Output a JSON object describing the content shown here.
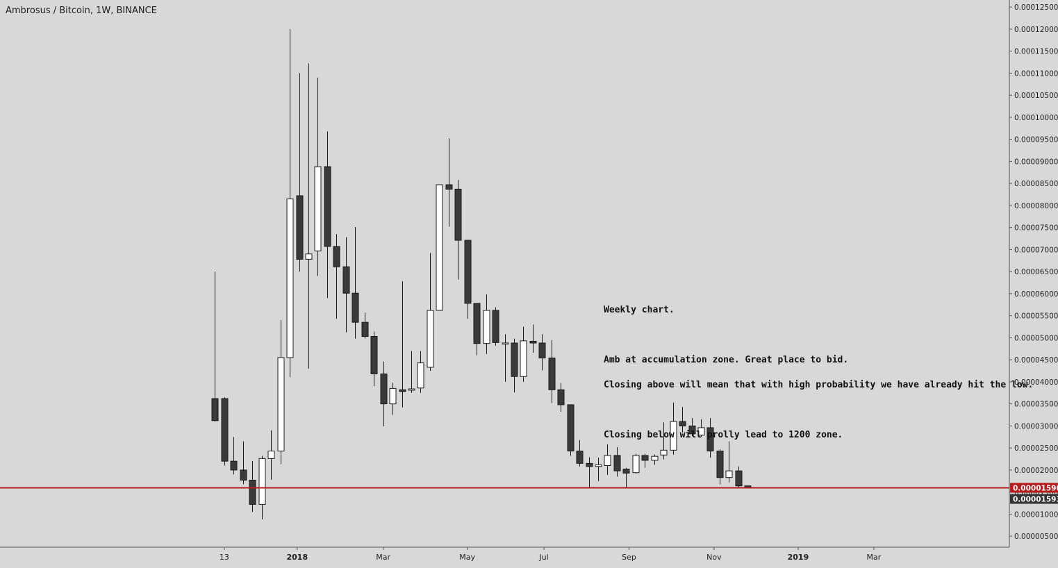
{
  "header": {
    "symbol_title": "Ambrosus / Bitcoin, 1W, BINANCE"
  },
  "annotation": {
    "lines": [
      "Weekly chart.",
      "",
      "Amb at accumulation zone. Great place to bid.",
      "Closing above will mean that with high probability we have already hit the low.",
      "",
      "Closing below will prolly lead to 1200 zone."
    ]
  },
  "price_labels": {
    "horizontal_line_price": "0.00001596",
    "last_price": "0.00001593",
    "horizontal_line_color": "#b71c1c",
    "last_price_color": "#333333"
  },
  "colors": {
    "background": "#d8d8d8",
    "up_candle_body": "#ffffff",
    "down_candle_body": "#3a3a3a",
    "wick": "#1a1a1a",
    "axis_text": "#1e1e1e"
  },
  "chart_data": {
    "type": "candlestick",
    "timeframe": "1W",
    "y_axis": {
      "side": "right",
      "ylim": [
        2.5e-06,
        0.0001266
      ],
      "tick_values": [
        5e-06,
        1e-05,
        1.5e-05,
        2e-05,
        2.5e-05,
        3e-05,
        3.5e-05,
        4e-05,
        4.5e-05,
        5e-05,
        5.5e-05,
        6e-05,
        6.5e-05,
        7e-05,
        7.5e-05,
        8e-05,
        8.5e-05,
        9e-05,
        9.5e-05,
        0.0001,
        0.000105,
        0.00011,
        0.000115,
        0.00012,
        0.000125
      ],
      "tick_labels": [
        "0.00000500",
        "0.00001000",
        "0.00001500",
        "0.00002000",
        "0.00002500",
        "0.00003000",
        "0.00003500",
        "0.00004000",
        "0.00004500",
        "0.00005000",
        "0.00005500",
        "0.00006000",
        "0.00006500",
        "0.00007000",
        "0.00007500",
        "0.00008000",
        "0.00008500",
        "0.00009000",
        "0.00009500",
        "0.00010000",
        "0.00010500",
        "0.00011000",
        "0.00011500",
        "0.00012000",
        "0.00012500"
      ]
    },
    "x_axis": {
      "first_candle_week": "2017-10-29",
      "xlim_weeks": [
        -23,
        85
      ],
      "ticks": [
        {
          "label": "13",
          "week": 1,
          "bold": false
        },
        {
          "label": "2018",
          "week": 8.8,
          "bold": true
        },
        {
          "label": "Mar",
          "week": 18,
          "bold": false
        },
        {
          "label": "May",
          "week": 27,
          "bold": false
        },
        {
          "label": "Jul",
          "week": 35.2,
          "bold": false
        },
        {
          "label": "Sep",
          "week": 44.3,
          "bold": false
        },
        {
          "label": "Nov",
          "week": 53.4,
          "bold": false
        },
        {
          "label": "2019",
          "week": 62.4,
          "bold": true
        },
        {
          "label": "Mar",
          "week": 70.5,
          "bold": false
        }
      ]
    },
    "horizontal_line": {
      "value": 1.596e-05
    },
    "last_value": 1.593e-05,
    "candles": [
      {
        "o": 3.62e-05,
        "h": 6.5e-05,
        "l": 3.1e-05,
        "c": 3.12e-05
      },
      {
        "o": 3.62e-05,
        "h": 3.65e-05,
        "l": 2.1e-05,
        "c": 2.2e-05
      },
      {
        "o": 2.2e-05,
        "h": 2.75e-05,
        "l": 1.9e-05,
        "c": 2e-05
      },
      {
        "o": 2e-05,
        "h": 2.65e-05,
        "l": 1.68e-05,
        "c": 1.77e-05
      },
      {
        "o": 1.77e-05,
        "h": 2.2e-05,
        "l": 1.05e-05,
        "c": 1.22e-05
      },
      {
        "o": 1.22e-05,
        "h": 2.32e-05,
        "l": 8.8e-06,
        "c": 2.26e-05
      },
      {
        "o": 2.26e-05,
        "h": 2.9e-05,
        "l": 1.78e-05,
        "c": 2.43e-05
      },
      {
        "o": 2.43e-05,
        "h": 5.4e-05,
        "l": 2.13e-05,
        "c": 4.55e-05
      },
      {
        "o": 4.55e-05,
        "h": 0.00012,
        "l": 4.1e-05,
        "c": 8.15e-05
      },
      {
        "o": 8.22e-05,
        "h": 0.00011,
        "l": 6.5e-05,
        "c": 6.78e-05
      },
      {
        "o": 6.78e-05,
        "h": 0.0001122,
        "l": 4.3e-05,
        "c": 6.9e-05
      },
      {
        "o": 6.97e-05,
        "h": 0.000109,
        "l": 6.4e-05,
        "c": 8.88e-05
      },
      {
        "o": 8.88e-05,
        "h": 9.68e-05,
        "l": 5.9e-05,
        "c": 7.07e-05
      },
      {
        "o": 7.07e-05,
        "h": 7.35e-05,
        "l": 5.43e-05,
        "c": 6.61e-05
      },
      {
        "o": 6.61e-05,
        "h": 7.28e-05,
        "l": 5.12e-05,
        "c": 6.01e-05
      },
      {
        "o": 6.01e-05,
        "h": 7.51e-05,
        "l": 4.98e-05,
        "c": 5.35e-05
      },
      {
        "o": 5.35e-05,
        "h": 5.57e-05,
        "l": 4.98e-05,
        "c": 5.03e-05
      },
      {
        "o": 5.03e-05,
        "h": 5.14e-05,
        "l": 3.9e-05,
        "c": 4.18e-05
      },
      {
        "o": 4.18e-05,
        "h": 4.46e-05,
        "l": 2.99e-05,
        "c": 3.5e-05
      },
      {
        "o": 3.5e-05,
        "h": 3.98e-05,
        "l": 3.25e-05,
        "c": 3.85e-05
      },
      {
        "o": 3.82e-05,
        "h": 6.28e-05,
        "l": 3.42e-05,
        "c": 3.78e-05
      },
      {
        "o": 3.81e-05,
        "h": 4.7e-05,
        "l": 3.75e-05,
        "c": 3.84e-05
      },
      {
        "o": 3.86e-05,
        "h": 4.7e-05,
        "l": 3.75e-05,
        "c": 4.43e-05
      },
      {
        "o": 4.33e-05,
        "h": 6.92e-05,
        "l": 4.25e-05,
        "c": 5.62e-05
      },
      {
        "o": 5.62e-05,
        "h": 8.47e-05,
        "l": 5.62e-05,
        "c": 8.47e-05
      },
      {
        "o": 8.47e-05,
        "h": 9.52e-05,
        "l": 7.52e-05,
        "c": 8.37e-05
      },
      {
        "o": 8.37e-05,
        "h": 8.58e-05,
        "l": 6.32e-05,
        "c": 7.21e-05
      },
      {
        "o": 7.21e-05,
        "h": 7.22e-05,
        "l": 5.43e-05,
        "c": 5.78e-05
      },
      {
        "o": 5.78e-05,
        "h": 5.78e-05,
        "l": 4.6e-05,
        "c": 4.87e-05
      },
      {
        "o": 4.87e-05,
        "h": 5.98e-05,
        "l": 4.63e-05,
        "c": 5.62e-05
      },
      {
        "o": 5.62e-05,
        "h": 5.69e-05,
        "l": 4.82e-05,
        "c": 4.89e-05
      },
      {
        "o": 4.88e-05,
        "h": 5.08e-05,
        "l": 4e-05,
        "c": 4.88e-05
      },
      {
        "o": 4.88e-05,
        "h": 4.98e-05,
        "l": 3.76e-05,
        "c": 4.12e-05
      },
      {
        "o": 4.12e-05,
        "h": 5.25e-05,
        "l": 4e-05,
        "c": 4.93e-05
      },
      {
        "o": 4.92e-05,
        "h": 5.3e-05,
        "l": 4.66e-05,
        "c": 4.88e-05
      },
      {
        "o": 4.88e-05,
        "h": 5.08e-05,
        "l": 4.26e-05,
        "c": 4.54e-05
      },
      {
        "o": 4.54e-05,
        "h": 4.95e-05,
        "l": 3.52e-05,
        "c": 3.82e-05
      },
      {
        "o": 3.82e-05,
        "h": 3.97e-05,
        "l": 3.32e-05,
        "c": 3.48e-05
      },
      {
        "o": 3.48e-05,
        "h": 3.48e-05,
        "l": 2.32e-05,
        "c": 2.43e-05
      },
      {
        "o": 2.43e-05,
        "h": 2.68e-05,
        "l": 2.08e-05,
        "c": 2.15e-05
      },
      {
        "o": 2.15e-05,
        "h": 2.29e-05,
        "l": 1.59e-05,
        "c": 2.08e-05
      },
      {
        "o": 2.08e-05,
        "h": 2.28e-05,
        "l": 1.75e-05,
        "c": 2.12e-05
      },
      {
        "o": 2.1e-05,
        "h": 2.58e-05,
        "l": 1.89e-05,
        "c": 2.33e-05
      },
      {
        "o": 2.33e-05,
        "h": 2.52e-05,
        "l": 1.85e-05,
        "c": 1.98e-05
      },
      {
        "o": 2.02e-05,
        "h": 2.05e-05,
        "l": 1.59e-05,
        "c": 1.93e-05
      },
      {
        "o": 1.94e-05,
        "h": 2.37e-05,
        "l": 1.92e-05,
        "c": 2.33e-05
      },
      {
        "o": 2.33e-05,
        "h": 2.37e-05,
        "l": 2.05e-05,
        "c": 2.22e-05
      },
      {
        "o": 2.22e-05,
        "h": 2.35e-05,
        "l": 2.12e-05,
        "c": 2.31e-05
      },
      {
        "o": 2.34e-05,
        "h": 3.08e-05,
        "l": 2.24e-05,
        "c": 2.45e-05
      },
      {
        "o": 2.45e-05,
        "h": 3.53e-05,
        "l": 2.35e-05,
        "c": 3.1e-05
      },
      {
        "o": 3.1e-05,
        "h": 3.43e-05,
        "l": 2.85e-05,
        "c": 3e-05
      },
      {
        "o": 3e-05,
        "h": 3.18e-05,
        "l": 2.77e-05,
        "c": 2.82e-05
      },
      {
        "o": 2.79e-05,
        "h": 3.15e-05,
        "l": 2.75e-05,
        "c": 2.96e-05
      },
      {
        "o": 2.96e-05,
        "h": 3.18e-05,
        "l": 2.28e-05,
        "c": 2.43e-05
      },
      {
        "o": 2.43e-05,
        "h": 2.47e-05,
        "l": 1.67e-05,
        "c": 1.83e-05
      },
      {
        "o": 1.83e-05,
        "h": 2.65e-05,
        "l": 1.72e-05,
        "c": 1.98e-05
      },
      {
        "o": 1.98e-05,
        "h": 2.08e-05,
        "l": 1.58e-05,
        "c": 1.64e-05
      },
      {
        "o": 1.64e-05,
        "h": 1.64e-05,
        "l": 1.59e-05,
        "c": 1.59e-05
      }
    ]
  }
}
